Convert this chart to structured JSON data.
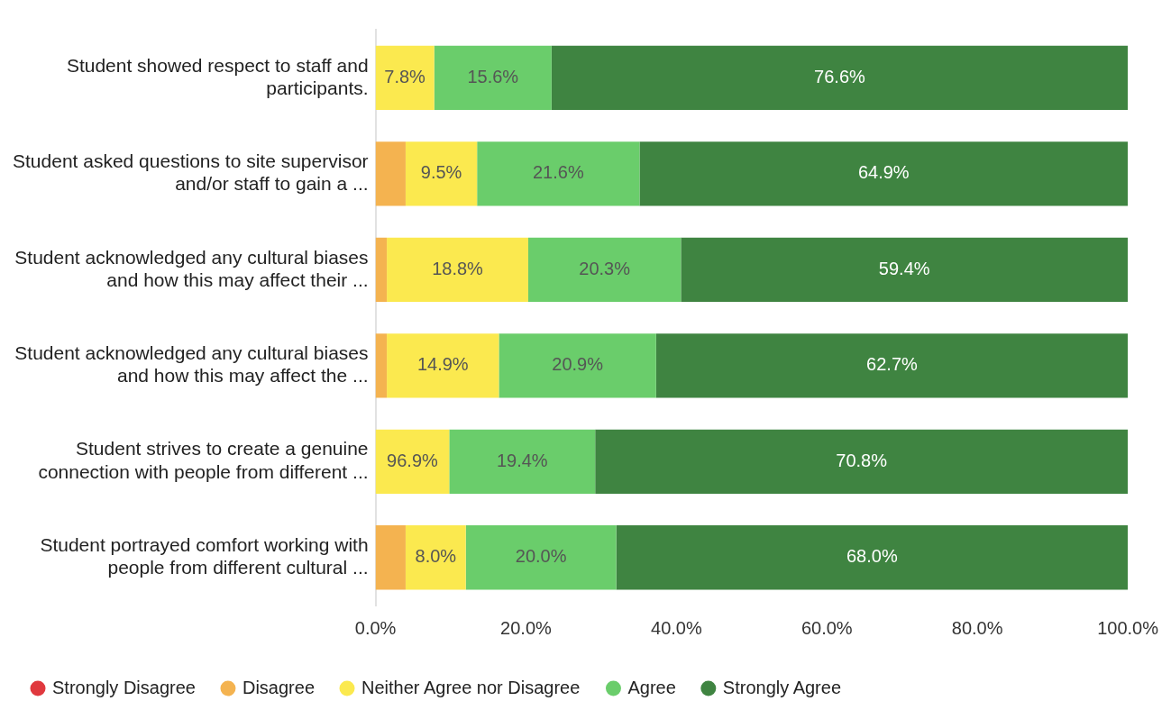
{
  "chart_data": {
    "type": "bar",
    "orientation": "horizontal",
    "stacked": true,
    "categories": [
      "Student showed respect to staff and participants.",
      "Student asked questions to site supervisor and/or staff to gain a ...",
      "Student acknowledged any cultural biases and how this may affect their ...",
      "Student acknowledged any cultural biases and how this may affect the ...",
      "Student strives to create a genuine connection with people from different ...",
      "Student portrayed comfort working with people from different cultural ..."
    ],
    "series": [
      {
        "name": "Strongly Disagree",
        "color": "#e0393e",
        "values": [
          0,
          0,
          0,
          0,
          0,
          0
        ],
        "value_labels": [
          null,
          null,
          null,
          null,
          null,
          null
        ]
      },
      {
        "name": "Disagree",
        "color": "#f4b350",
        "values": [
          0,
          4.0,
          1.5,
          1.5,
          0,
          4.0
        ],
        "value_labels": [
          null,
          null,
          null,
          null,
          null,
          null
        ]
      },
      {
        "name": "Neither Agree nor Disagree",
        "color": "#fbe94f",
        "values": [
          7.8,
          9.5,
          18.8,
          14.9,
          9.8,
          8.0
        ],
        "value_labels": [
          "7.8%",
          "9.5%",
          "18.8%",
          "14.9%",
          null,
          "8.0%"
        ]
      },
      {
        "name": "Agree",
        "color": "#6acd6b",
        "values": [
          15.6,
          21.6,
          20.3,
          20.9,
          19.4,
          20.0
        ],
        "value_labels": [
          "15.6%",
          "21.6%",
          "20.3%",
          "20.9%",
          "19.4%",
          "20.0%"
        ]
      },
      {
        "name": "Strongly Agree",
        "color": "#3f8441",
        "values": [
          76.6,
          64.9,
          59.4,
          62.7,
          70.8,
          68.0
        ],
        "value_labels": [
          "76.6%",
          "64.9%",
          "59.4%",
          "62.7%",
          "70.8%",
          "68.0%"
        ]
      }
    ],
    "annotations": [
      "96.9%"
    ],
    "xlim": [
      0,
      100
    ],
    "xticks": [
      {
        "value": 0,
        "label": "0.0%"
      },
      {
        "value": 20,
        "label": "20.0%"
      },
      {
        "value": 40,
        "label": "40.0%"
      },
      {
        "value": 60,
        "label": "60.0%"
      },
      {
        "value": 80,
        "label": "80.0%"
      },
      {
        "value": 100,
        "label": "100.0%"
      }
    ],
    "grid": false,
    "legend": "bottom"
  }
}
